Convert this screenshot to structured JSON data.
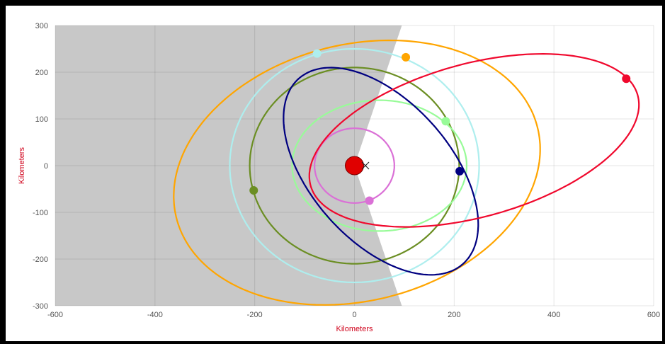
{
  "chart_data": {
    "type": "scatter",
    "title": "",
    "xlabel": "Kilometers",
    "ylabel": "Kilometers",
    "xlim": [
      -600,
      600
    ],
    "ylim": [
      -300,
      300
    ],
    "x_ticks": [
      -600,
      -400,
      -200,
      0,
      200,
      400,
      600
    ],
    "y_ticks": [
      300,
      200,
      100,
      0,
      -100,
      -200,
      -300
    ],
    "grid": true,
    "axis_title_color": "#d0021b",
    "shadow": {
      "color": "#c8c8c8",
      "polygon": [
        [
          -600,
          300
        ],
        [
          95,
          300
        ],
        [
          0,
          0
        ],
        [
          95,
          -300
        ],
        [
          -600,
          -300
        ]
      ]
    },
    "central_body": {
      "x": 0,
      "y": 0,
      "color": "#e00000",
      "marker": "circle"
    },
    "focus_marker": {
      "x": 22,
      "y": 0,
      "marker": "x"
    },
    "series": [
      {
        "color": "#ffa500",
        "orbit": {
          "cx": 5,
          "cy": -15,
          "rx": 375,
          "ry": 273,
          "rot": 17
        },
        "marker": [
          103,
          232
        ]
      },
      {
        "color": "#aeeeee",
        "orbit": {
          "cx": 0,
          "cy": 0,
          "rx": 250,
          "ry": 250,
          "rot": 0
        },
        "marker": [
          -75,
          240
        ]
      },
      {
        "color": "#6b8e23",
        "orbit": {
          "cx": 0,
          "cy": 0,
          "rx": 210,
          "ry": 210,
          "rot": 0
        },
        "marker": [
          -202,
          -53
        ]
      },
      {
        "color": "#98fb98",
        "orbit": {
          "cx": 50,
          "cy": 0,
          "rx": 175,
          "ry": 140,
          "rot": 0
        },
        "marker": [
          183,
          95
        ]
      },
      {
        "color": "#da70d6",
        "orbit": {
          "cx": 0,
          "cy": 0,
          "rx": 80,
          "ry": 80,
          "rot": 0
        },
        "marker": [
          30,
          -75
        ]
      },
      {
        "color": "#000080",
        "orbit": {
          "cx": 53,
          "cy": -12,
          "rx": 258,
          "ry": 144,
          "rot": -52
        },
        "marker": [
          211,
          -12
        ]
      },
      {
        "color": "#f0082d",
        "orbit": {
          "cx": 240,
          "cy": 54,
          "rx": 342,
          "ry": 163,
          "rot": 17
        },
        "marker": [
          545,
          186
        ]
      }
    ]
  }
}
